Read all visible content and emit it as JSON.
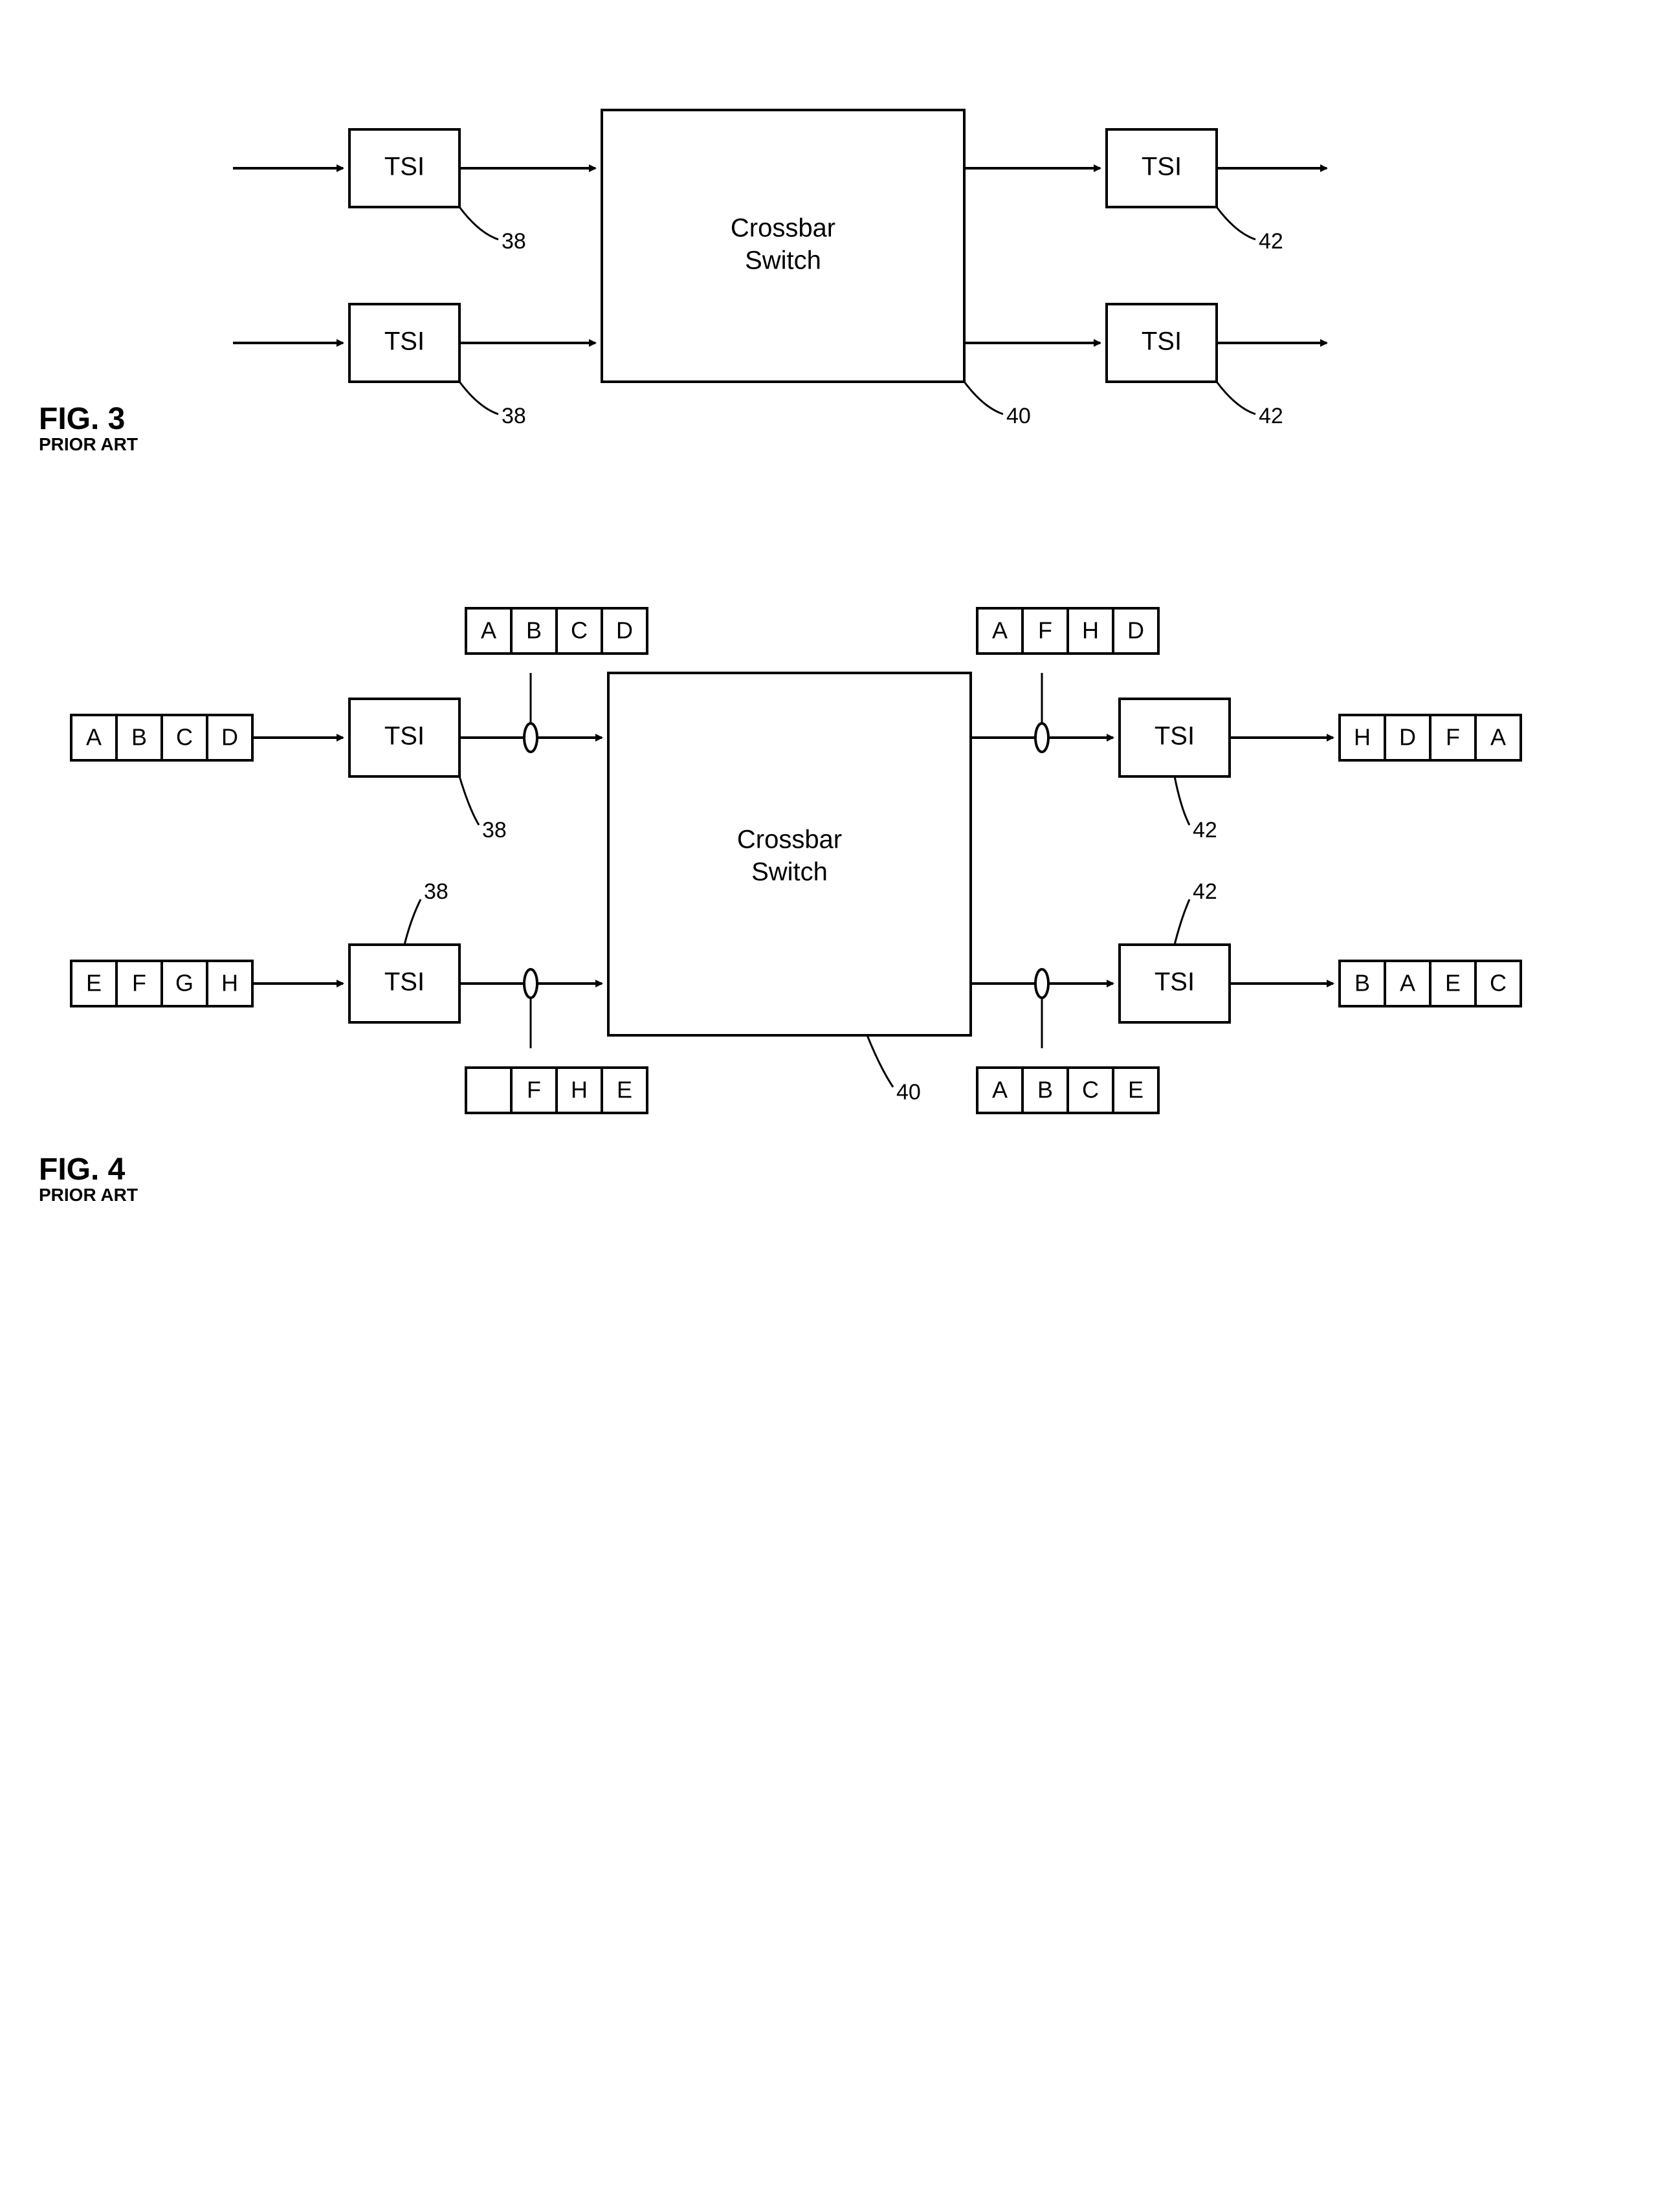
{
  "fig3": {
    "label_main": "FIG. 3",
    "label_sub": "PRIOR ART",
    "crossbar_label1": "Crossbar",
    "crossbar_label2": "Switch",
    "crossbar_ref": "40",
    "tsi_label": "TSI",
    "tsi_in_ref": "38",
    "tsi_out_ref": "42",
    "colors": {
      "stroke": "#000000",
      "fill": "#ffffff"
    },
    "stroke_width": 4,
    "font_block": 40,
    "font_ref": 34
  },
  "fig4": {
    "label_main": "FIG. 4",
    "label_sub": "PRIOR ART",
    "crossbar_label1": "Crossbar",
    "crossbar_label2": "Switch",
    "crossbar_ref": "40",
    "tsi_label": "TSI",
    "tsi_in_ref": "38",
    "tsi_out_ref": "42",
    "slots_in_top": [
      "A",
      "B",
      "C",
      "D"
    ],
    "slots_in_bot": [
      "E",
      "F",
      "G",
      "H"
    ],
    "slots_mid1": [
      "A",
      "B",
      "C",
      "D"
    ],
    "slots_mid2": [
      "",
      "F",
      "H",
      "E"
    ],
    "slots_mid3": [
      "A",
      "F",
      "H",
      "D"
    ],
    "slots_mid4": [
      "A",
      "B",
      "C",
      "E"
    ],
    "slots_out_top": [
      "H",
      "D",
      "F",
      "A"
    ],
    "slots_out_bot": [
      "B",
      "A",
      "E",
      "C"
    ],
    "slot_size": 70,
    "font_slot": 36,
    "font_block": 40,
    "font_ref": 34,
    "colors": {
      "stroke": "#000000",
      "fill": "#ffffff"
    },
    "stroke_width": 4
  }
}
